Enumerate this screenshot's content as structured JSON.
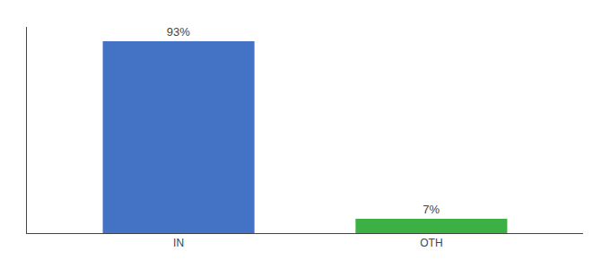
{
  "chart_data": {
    "type": "bar",
    "categories": [
      "IN",
      "OTH"
    ],
    "values": [
      93,
      7
    ],
    "value_labels": [
      "93%",
      "7%"
    ],
    "colors": [
      "#4472c4",
      "#3cb043"
    ],
    "ylim": [
      0,
      100
    ],
    "data_labels": true,
    "tick_labels": "x",
    "grid": false
  }
}
